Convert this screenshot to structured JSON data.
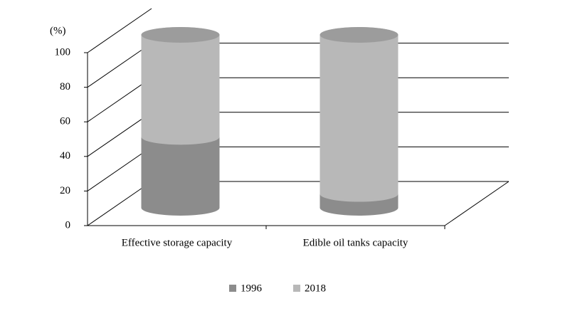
{
  "chart_data": {
    "type": "bar3d_cylinder_stacked",
    "y_label": "(%)",
    "categories": [
      "Effective storage capacity",
      "Edible oil tanks capacity"
    ],
    "series": [
      {
        "name": "1996",
        "color": "#8c8c8c",
        "values": [
          41,
          8
        ]
      },
      {
        "name": "2018",
        "color": "#b8b8b8",
        "values": [
          59,
          92
        ]
      }
    ],
    "ylim": [
      0,
      100
    ],
    "yticks": [
      0,
      20,
      40,
      60,
      80,
      100
    ],
    "grid": true,
    "legend": "bottom"
  }
}
